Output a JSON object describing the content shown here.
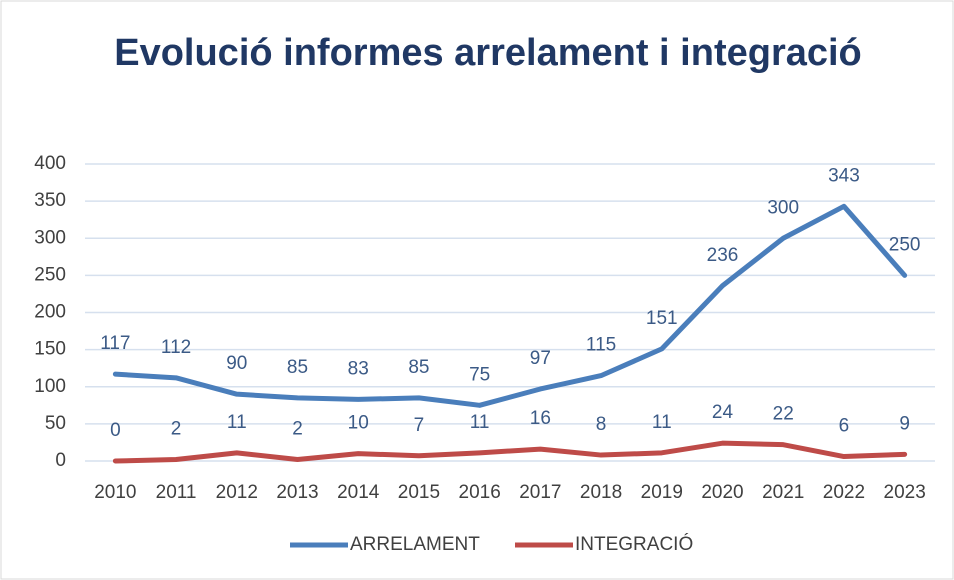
{
  "chart_data": {
    "type": "line",
    "title": "Evolució informes arrelament i integració",
    "categories": [
      "2010",
      "2011",
      "2012",
      "2013",
      "2014",
      "2015",
      "2016",
      "2017",
      "2018",
      "2019",
      "2020",
      "2021",
      "2022",
      "2023"
    ],
    "series": [
      {
        "name": "ARRELAMENT",
        "color": "#4a7ebb",
        "values": [
          117,
          112,
          90,
          85,
          83,
          85,
          75,
          97,
          115,
          151,
          236,
          300,
          343,
          250
        ]
      },
      {
        "name": "INTEGRACIÓ",
        "color": "#be4b48",
        "values": [
          0,
          2,
          11,
          2,
          10,
          7,
          11,
          16,
          8,
          11,
          24,
          22,
          6,
          9
        ]
      }
    ],
    "ylim": [
      0,
      400
    ],
    "yticks": [
      0,
      50,
      100,
      150,
      200,
      250,
      300,
      350,
      400
    ],
    "grid": true,
    "legend": "bottom"
  }
}
